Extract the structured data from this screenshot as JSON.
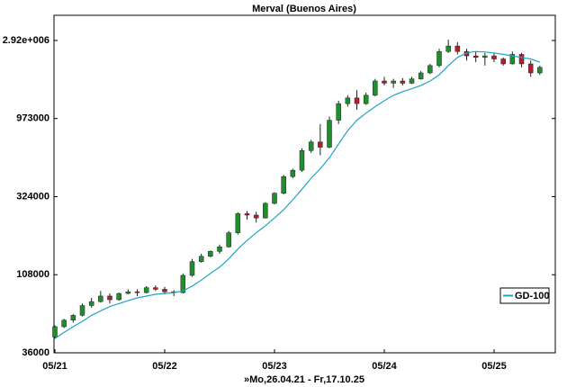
{
  "chart_data": {
    "type": "candlestick",
    "title": "Merval (Buenos Aires)",
    "xlabel": "»Mo,26.04.21 - Fr,17.10.25",
    "categories": [
      "05/21",
      null,
      null,
      null,
      null,
      null,
      null,
      null,
      null,
      null,
      null,
      null,
      "05/22",
      null,
      null,
      null,
      null,
      null,
      null,
      null,
      null,
      null,
      null,
      null,
      "05/23",
      null,
      null,
      null,
      null,
      null,
      null,
      null,
      null,
      null,
      null,
      null,
      "05/24",
      null,
      null,
      null,
      null,
      null,
      null,
      null,
      null,
      null,
      null,
      null,
      "05/25",
      null,
      null,
      null,
      null,
      null
    ],
    "open": [
      45000,
      52000,
      57000,
      61000,
      70000,
      74000,
      80000,
      76000,
      83000,
      85000,
      84000,
      90000,
      88000,
      85000,
      84000,
      107000,
      130000,
      140000,
      150000,
      160000,
      195000,
      255000,
      250000,
      240000,
      295000,
      340000,
      430000,
      470000,
      620000,
      700000,
      650000,
      950000,
      1200000,
      1300000,
      1200000,
      1350000,
      1650000,
      1600000,
      1650000,
      1600000,
      1700000,
      1850000,
      2050000,
      2500000,
      2700000,
      2500000,
      2350000,
      2300000,
      2350000,
      2250000,
      2100000,
      2400000,
      2100000,
      1850000
    ],
    "high": [
      53000,
      58000,
      62000,
      72000,
      78000,
      86000,
      83000,
      84000,
      88000,
      88000,
      92000,
      93000,
      91000,
      87000,
      110000,
      135000,
      145000,
      152000,
      165000,
      200000,
      260000,
      265000,
      262000,
      300000,
      345000,
      440000,
      480000,
      640000,
      720000,
      900000,
      1000000,
      1250000,
      1350000,
      1450000,
      1400000,
      1700000,
      1750000,
      1700000,
      1720000,
      1750000,
      1900000,
      2100000,
      2600000,
      2950000,
      2850000,
      2600000,
      2500000,
      2450000,
      2450000,
      2300000,
      2500000,
      2450000,
      2200000,
      2050000
    ],
    "low": [
      44000,
      51000,
      55000,
      60000,
      68000,
      73000,
      72000,
      75000,
      82000,
      80000,
      83000,
      86000,
      82000,
      80000,
      83000,
      105000,
      128000,
      138000,
      145000,
      158000,
      190000,
      235000,
      225000,
      238000,
      290000,
      335000,
      420000,
      460000,
      600000,
      580000,
      640000,
      900000,
      1150000,
      1100000,
      1180000,
      1330000,
      1550000,
      1500000,
      1550000,
      1580000,
      1680000,
      1820000,
      2000000,
      2450000,
      2400000,
      2200000,
      2150000,
      2050000,
      2150000,
      2050000,
      2080000,
      2000000,
      1750000,
      1800000
    ],
    "close": [
      52000,
      57000,
      61000,
      70000,
      74000,
      80000,
      76000,
      83000,
      85000,
      84000,
      90000,
      88000,
      85000,
      84000,
      107000,
      130000,
      140000,
      150000,
      160000,
      195000,
      255000,
      250000,
      240000,
      295000,
      340000,
      430000,
      470000,
      620000,
      700000,
      650000,
      950000,
      1200000,
      1300000,
      1200000,
      1350000,
      1650000,
      1600000,
      1650000,
      1600000,
      1700000,
      1850000,
      2050000,
      2500000,
      2700000,
      2500000,
      2350000,
      2300000,
      2350000,
      2250000,
      2100000,
      2400000,
      2100000,
      1850000,
      2000000
    ],
    "up_color": "#1f8f2e",
    "down_color": "#b0202a",
    "series": [
      {
        "name": "GD-100",
        "color": "#1fa5c4",
        "values": [
          44000,
          48000,
          52000,
          56000,
          61000,
          65000,
          69000,
          72000,
          75000,
          78000,
          80000,
          82000,
          83000,
          84000,
          86000,
          92000,
          100000,
          110000,
          120000,
          135000,
          155000,
          175000,
          195000,
          215000,
          240000,
          270000,
          310000,
          360000,
          420000,
          480000,
          560000,
          680000,
          820000,
          950000,
          1050000,
          1150000,
          1250000,
          1350000,
          1420000,
          1480000,
          1550000,
          1650000,
          1800000,
          2050000,
          2300000,
          2450000,
          2500000,
          2480000,
          2450000,
          2400000,
          2350000,
          2300000,
          2250000,
          2150000
        ]
      }
    ],
    "log_scale": true,
    "ylim": [
      36000,
      4160000
    ],
    "yticks": [
      36000,
      108000,
      324000,
      973000,
      {
        "value": 2920000,
        "label": "2.92e+006"
      }
    ],
    "legend": "right"
  }
}
